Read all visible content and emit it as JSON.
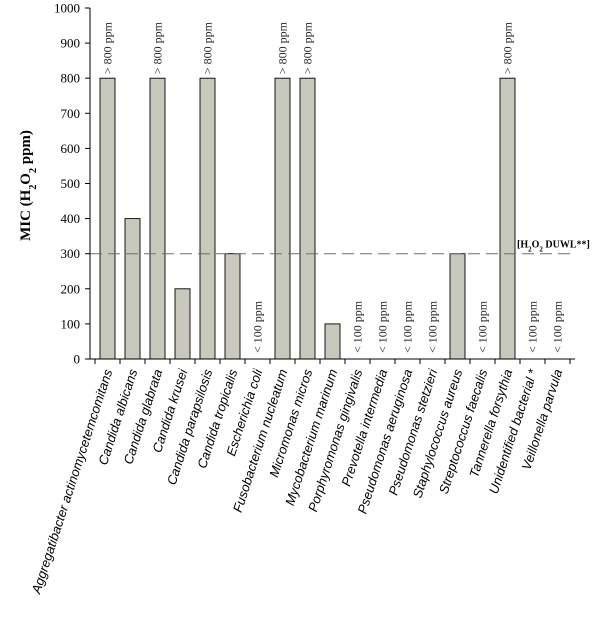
{
  "chart_data": {
    "type": "bar",
    "ylabel_parts": [
      "MIC (H",
      "2",
      "O",
      "2",
      " ppm)"
    ],
    "ylim": [
      0,
      1000
    ],
    "yticks": [
      0,
      100,
      200,
      300,
      400,
      500,
      600,
      700,
      800,
      900,
      1000
    ],
    "categories": [
      "Aggregatibacter actinomycetemcomitans",
      "Candida albicans",
      "Candida glabrata",
      "Candida krusei",
      "Candida parapsilosis",
      "Candida tropicalis",
      "Escherichia coli",
      "Fusobacterium  nucleatum",
      "Micromonas micros",
      "Mycobacterium marinum",
      "Porphyromonas gingivalis",
      "Prevotella intermedia",
      "Pseudomonas aeruginosa",
      "Pseudomonas stetzieri",
      "Staphylococcus aureus",
      "Streptococcus faecalis",
      "Tannerella forsythia",
      "Unidentified bacterial *",
      "Veillonella parvula"
    ],
    "values": [
      800,
      400,
      800,
      200,
      800,
      300,
      0,
      800,
      800,
      100,
      0,
      0,
      0,
      0,
      300,
      0,
      800,
      0,
      0
    ],
    "data_labels": [
      "> 800 ppm",
      "",
      "> 800 ppm",
      "",
      "> 800 ppm",
      "",
      "< 100 ppm",
      "> 800 ppm",
      "> 800 ppm",
      "",
      "< 100 ppm",
      "< 100 ppm",
      "< 100 ppm",
      "< 100 ppm",
      "",
      "< 100 ppm",
      "> 800 ppm",
      "< 100 ppm",
      "< 100 ppm"
    ],
    "reference_line": {
      "value": 300,
      "label_parts": [
        "[H",
        "2",
        "O",
        "2",
        " DUWL**]"
      ]
    },
    "colors": {
      "bar_fill": "#c8c8bd",
      "reference_line": "#6e6e6e"
    }
  }
}
